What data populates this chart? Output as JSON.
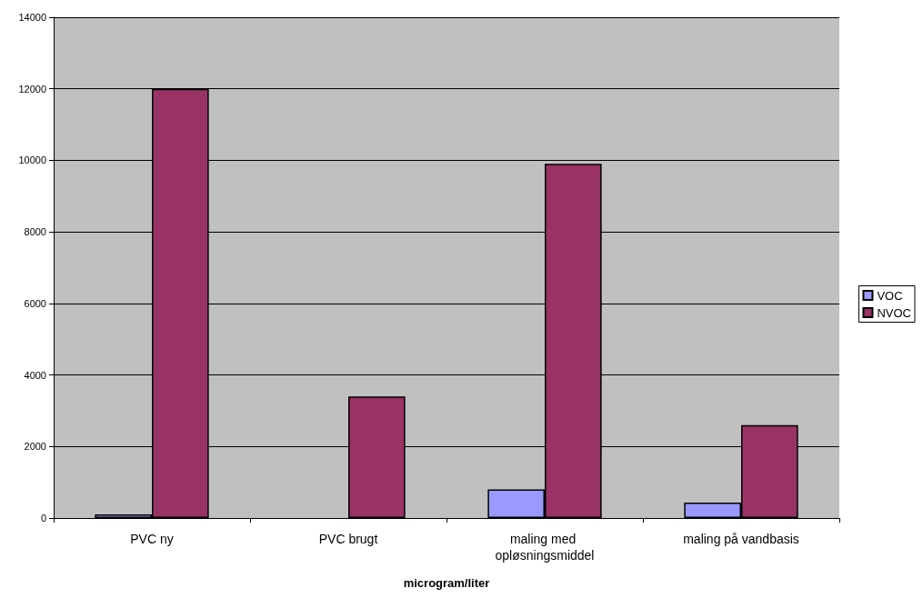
{
  "chart_data": {
    "type": "bar",
    "xlabel": "microgram/liter",
    "categories": [
      "PVC ny",
      "PVC brugt",
      "maling med opløsningsmiddel",
      "maling på vandbasis"
    ],
    "series": [
      {
        "name": "VOC",
        "color": "#9999ff",
        "values": [
          100,
          null,
          800,
          430
        ]
      },
      {
        "name": "NVOC",
        "color": "#993366",
        "values": [
          12000,
          3400,
          9900,
          2600
        ]
      }
    ],
    "ylim": [
      0,
      14000
    ],
    "yticks": [
      0,
      2000,
      4000,
      6000,
      8000,
      10000,
      12000,
      14000
    ],
    "grid": "y",
    "legend": "right"
  }
}
